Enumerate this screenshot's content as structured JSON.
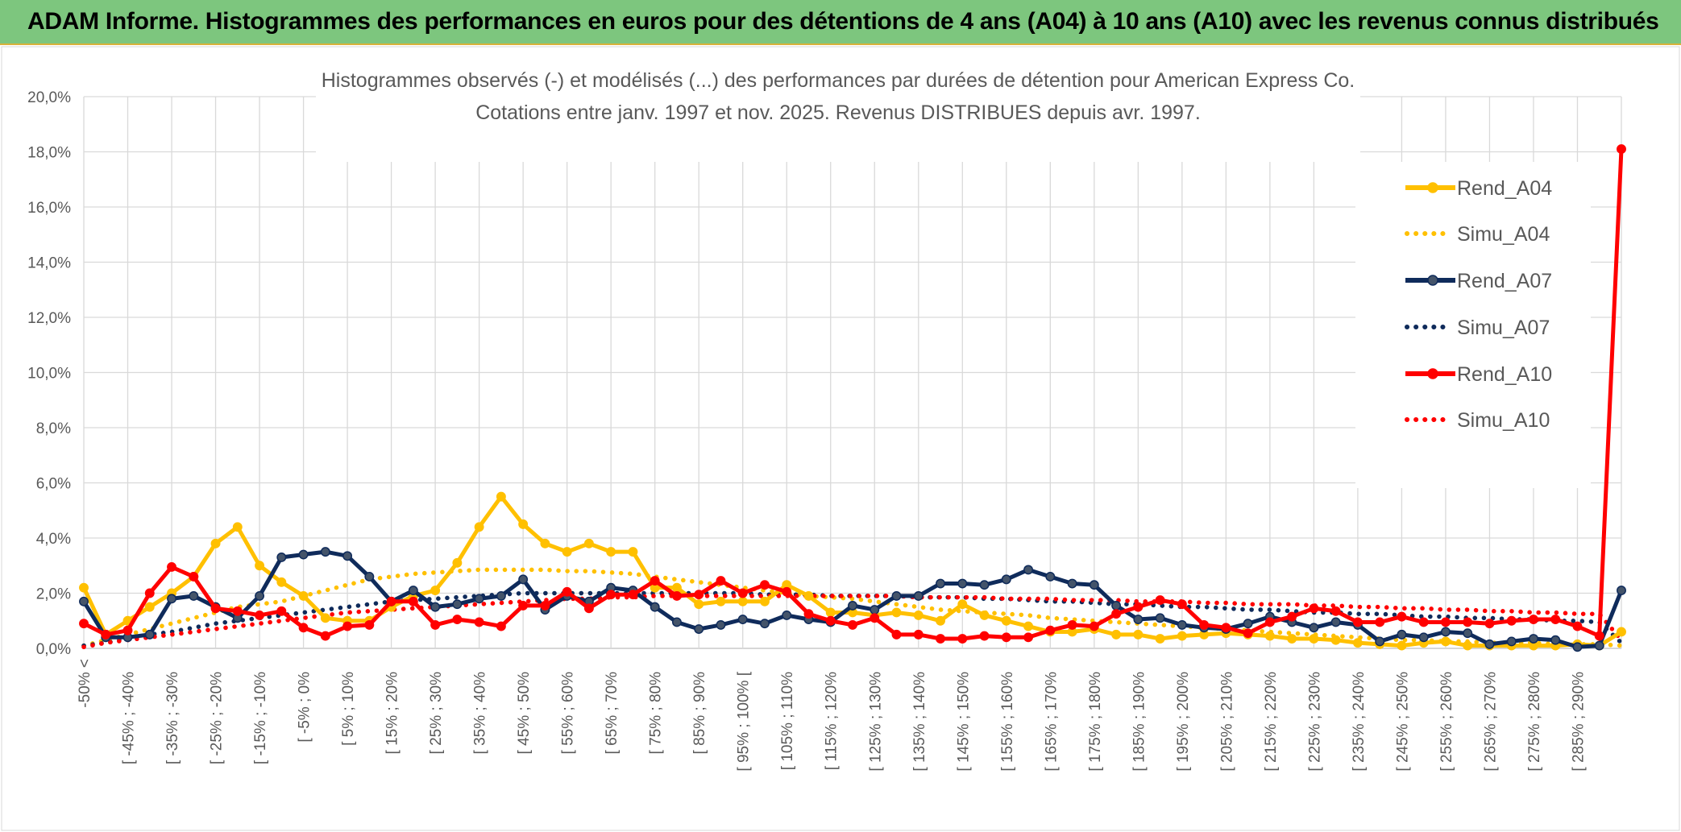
{
  "header": {
    "title": "ADAM Informe. Histogrammes des performances en euros pour des détentions de 4 ans (A04) à 10 ans (A10) avec les revenus connus distribués"
  },
  "chart_data": {
    "type": "line",
    "title_line1": "Histogrammes observés (-) et modélisés (...) des performances par durées de détention pour American Express Co.",
    "title_line2": "Cotations entre janv. 1997 et nov. 2025. Revenus DISTRIBUES depuis avr. 1997.",
    "ylim": [
      0,
      20
    ],
    "y_ticks": [
      "0,0%",
      "2,0%",
      "4,0%",
      "6,0%",
      "8,0%",
      "10,0%",
      "12,0%",
      "14,0%",
      "16,0%",
      "18,0%",
      "20,0%"
    ],
    "y_unit": "%",
    "grid": true,
    "legend_position": "right",
    "x_labels": [
      "-50% <",
      "[ -45% ; -40%",
      "[ -35% ; -30%",
      "[ -25% ; -20%",
      "[ -15% ; -10%",
      "[ -5% ; 0%",
      "[ 5% ; 10%",
      "[ 15% ; 20%",
      "[ 25% ; 30%",
      "[ 35% ; 40%",
      "[ 45% ; 50%",
      "[ 55% ; 60%",
      "[ 65% ; 70%",
      "[ 75% ; 80%",
      "[ 85% ; 90%",
      "[ 95% ; 100% [",
      "[ 105% ; 110%",
      "[ 115% ; 120%",
      "[ 125% ; 130%",
      "[ 135% ; 140%",
      "[ 145% ; 150%",
      "[ 155% ; 160%",
      "[ 165% ; 170%",
      "[ 175% ; 180%",
      "[ 185% ; 190%",
      "[ 195% ; 200%",
      "[ 205% ; 210%",
      "[ 215% ; 220%",
      "[ 225% ; 230%",
      "[ 235% ; 240%",
      "[ 245% ; 250%",
      "[ 255% ; 260%",
      "[ 265% ; 270%",
      "[ 275% ; 280%",
      "[ 285% ; 290%"
    ],
    "n_points": 71,
    "series": [
      {
        "name": "Rend_A04",
        "color": "#ffc000",
        "style": "solid",
        "values": [
          2.2,
          0.5,
          1.0,
          1.5,
          2.0,
          2.6,
          3.8,
          4.4,
          3.0,
          2.4,
          1.9,
          1.1,
          1.0,
          1.0,
          1.5,
          1.9,
          2.1,
          3.1,
          4.4,
          5.5,
          4.5,
          3.8,
          3.5,
          3.8,
          3.5,
          3.5,
          2.2,
          2.2,
          1.6,
          1.7,
          1.7,
          1.7,
          2.3,
          1.9,
          1.3,
          1.3,
          1.2,
          1.3,
          1.2,
          1.0,
          1.6,
          1.2,
          1.0,
          0.8,
          0.6,
          0.6,
          0.7,
          0.5,
          0.5,
          0.35,
          0.45,
          0.5,
          0.55,
          0.5,
          0.45,
          0.35,
          0.35,
          0.3,
          0.2,
          0.15,
          0.1,
          0.2,
          0.25,
          0.1,
          0.1,
          0.1,
          0.1,
          0.1,
          0.15,
          0.1,
          0.6
        ]
      },
      {
        "name": "Simu_A04",
        "color": "#ffc000",
        "style": "dotted",
        "values": [
          0.1,
          0.3,
          0.5,
          0.7,
          0.9,
          1.1,
          1.3,
          1.5,
          1.6,
          1.7,
          1.9,
          2.1,
          2.3,
          2.5,
          2.6,
          2.7,
          2.75,
          2.8,
          2.85,
          2.85,
          2.85,
          2.85,
          2.8,
          2.8,
          2.75,
          2.7,
          2.6,
          2.5,
          2.4,
          2.3,
          2.2,
          2.1,
          2.0,
          1.9,
          1.85,
          1.8,
          1.7,
          1.6,
          1.5,
          1.4,
          1.35,
          1.3,
          1.25,
          1.2,
          1.1,
          1.05,
          1.0,
          0.95,
          0.9,
          0.85,
          0.8,
          0.75,
          0.7,
          0.65,
          0.6,
          0.55,
          0.5,
          0.45,
          0.4,
          0.35,
          0.3,
          0.3,
          0.25,
          0.25,
          0.2,
          0.2,
          0.2,
          0.15,
          0.15,
          0.15,
          0.1
        ]
      },
      {
        "name": "Rend_A07",
        "color": "#0f2b5b",
        "style": "solid",
        "values": [
          1.7,
          0.4,
          0.4,
          0.5,
          1.8,
          1.9,
          1.5,
          1.1,
          1.9,
          3.3,
          3.4,
          3.5,
          3.35,
          2.6,
          1.7,
          2.1,
          1.5,
          1.6,
          1.8,
          1.9,
          2.5,
          1.4,
          1.9,
          1.7,
          2.2,
          2.1,
          1.5,
          0.95,
          0.7,
          0.85,
          1.05,
          0.9,
          1.2,
          1.05,
          0.95,
          1.55,
          1.4,
          1.9,
          1.9,
          2.35,
          2.35,
          2.3,
          2.5,
          2.85,
          2.6,
          2.35,
          2.3,
          1.55,
          1.05,
          1.1,
          0.85,
          0.75,
          0.7,
          0.9,
          1.15,
          0.95,
          0.75,
          0.95,
          0.85,
          0.25,
          0.5,
          0.4,
          0.6,
          0.55,
          0.15,
          0.25,
          0.35,
          0.3,
          0.05,
          0.1,
          2.1
        ]
      },
      {
        "name": "Simu_A07",
        "color": "#0f2b5b",
        "style": "dotted",
        "values": [
          0.1,
          0.2,
          0.35,
          0.5,
          0.6,
          0.75,
          0.9,
          1.0,
          1.1,
          1.2,
          1.3,
          1.4,
          1.5,
          1.6,
          1.7,
          1.75,
          1.8,
          1.85,
          1.9,
          1.95,
          2.0,
          2.0,
          2.0,
          2.0,
          2.0,
          2.0,
          2.0,
          2.0,
          2.0,
          2.0,
          2.0,
          1.95,
          1.95,
          1.95,
          1.9,
          1.9,
          1.9,
          1.9,
          1.85,
          1.85,
          1.85,
          1.8,
          1.8,
          1.75,
          1.7,
          1.7,
          1.65,
          1.6,
          1.6,
          1.55,
          1.5,
          1.5,
          1.45,
          1.4,
          1.4,
          1.35,
          1.3,
          1.3,
          1.25,
          1.25,
          1.2,
          1.15,
          1.15,
          1.1,
          1.1,
          1.05,
          1.05,
          1.0,
          1.0,
          0.95,
          0.2
        ]
      },
      {
        "name": "Rend_A10",
        "color": "#ff0000",
        "style": "solid",
        "values": [
          0.9,
          0.5,
          0.65,
          2.0,
          2.95,
          2.6,
          1.45,
          1.35,
          1.2,
          1.35,
          0.75,
          0.45,
          0.8,
          0.85,
          1.7,
          1.7,
          0.85,
          1.05,
          0.95,
          0.8,
          1.55,
          1.55,
          2.05,
          1.45,
          1.95,
          1.95,
          2.45,
          1.9,
          1.95,
          2.45,
          2.0,
          2.3,
          2.05,
          1.25,
          1.0,
          0.85,
          1.1,
          0.5,
          0.5,
          0.35,
          0.35,
          0.45,
          0.4,
          0.4,
          0.65,
          0.85,
          0.8,
          1.25,
          1.5,
          1.75,
          1.6,
          0.85,
          0.75,
          0.55,
          0.95,
          1.15,
          1.45,
          1.35,
          0.95,
          0.95,
          1.15,
          0.95,
          0.95,
          0.95,
          0.9,
          1.0,
          1.05,
          1.05,
          0.8,
          0.45,
          18.1
        ]
      },
      {
        "name": "Simu_A10",
        "color": "#ff0000",
        "style": "dotted",
        "values": [
          0.05,
          0.2,
          0.3,
          0.4,
          0.5,
          0.6,
          0.7,
          0.8,
          0.9,
          1.0,
          1.1,
          1.2,
          1.3,
          1.35,
          1.4,
          1.45,
          1.5,
          1.55,
          1.6,
          1.65,
          1.7,
          1.75,
          1.8,
          1.8,
          1.85,
          1.85,
          1.9,
          1.9,
          1.9,
          1.9,
          1.9,
          1.9,
          1.9,
          1.9,
          1.9,
          1.9,
          1.9,
          1.9,
          1.85,
          1.85,
          1.85,
          1.85,
          1.8,
          1.8,
          1.8,
          1.75,
          1.75,
          1.75,
          1.7,
          1.7,
          1.7,
          1.65,
          1.65,
          1.6,
          1.6,
          1.6,
          1.55,
          1.55,
          1.5,
          1.5,
          1.45,
          1.45,
          1.4,
          1.4,
          1.35,
          1.35,
          1.3,
          1.3,
          1.25,
          1.25,
          0.3
        ]
      }
    ]
  }
}
